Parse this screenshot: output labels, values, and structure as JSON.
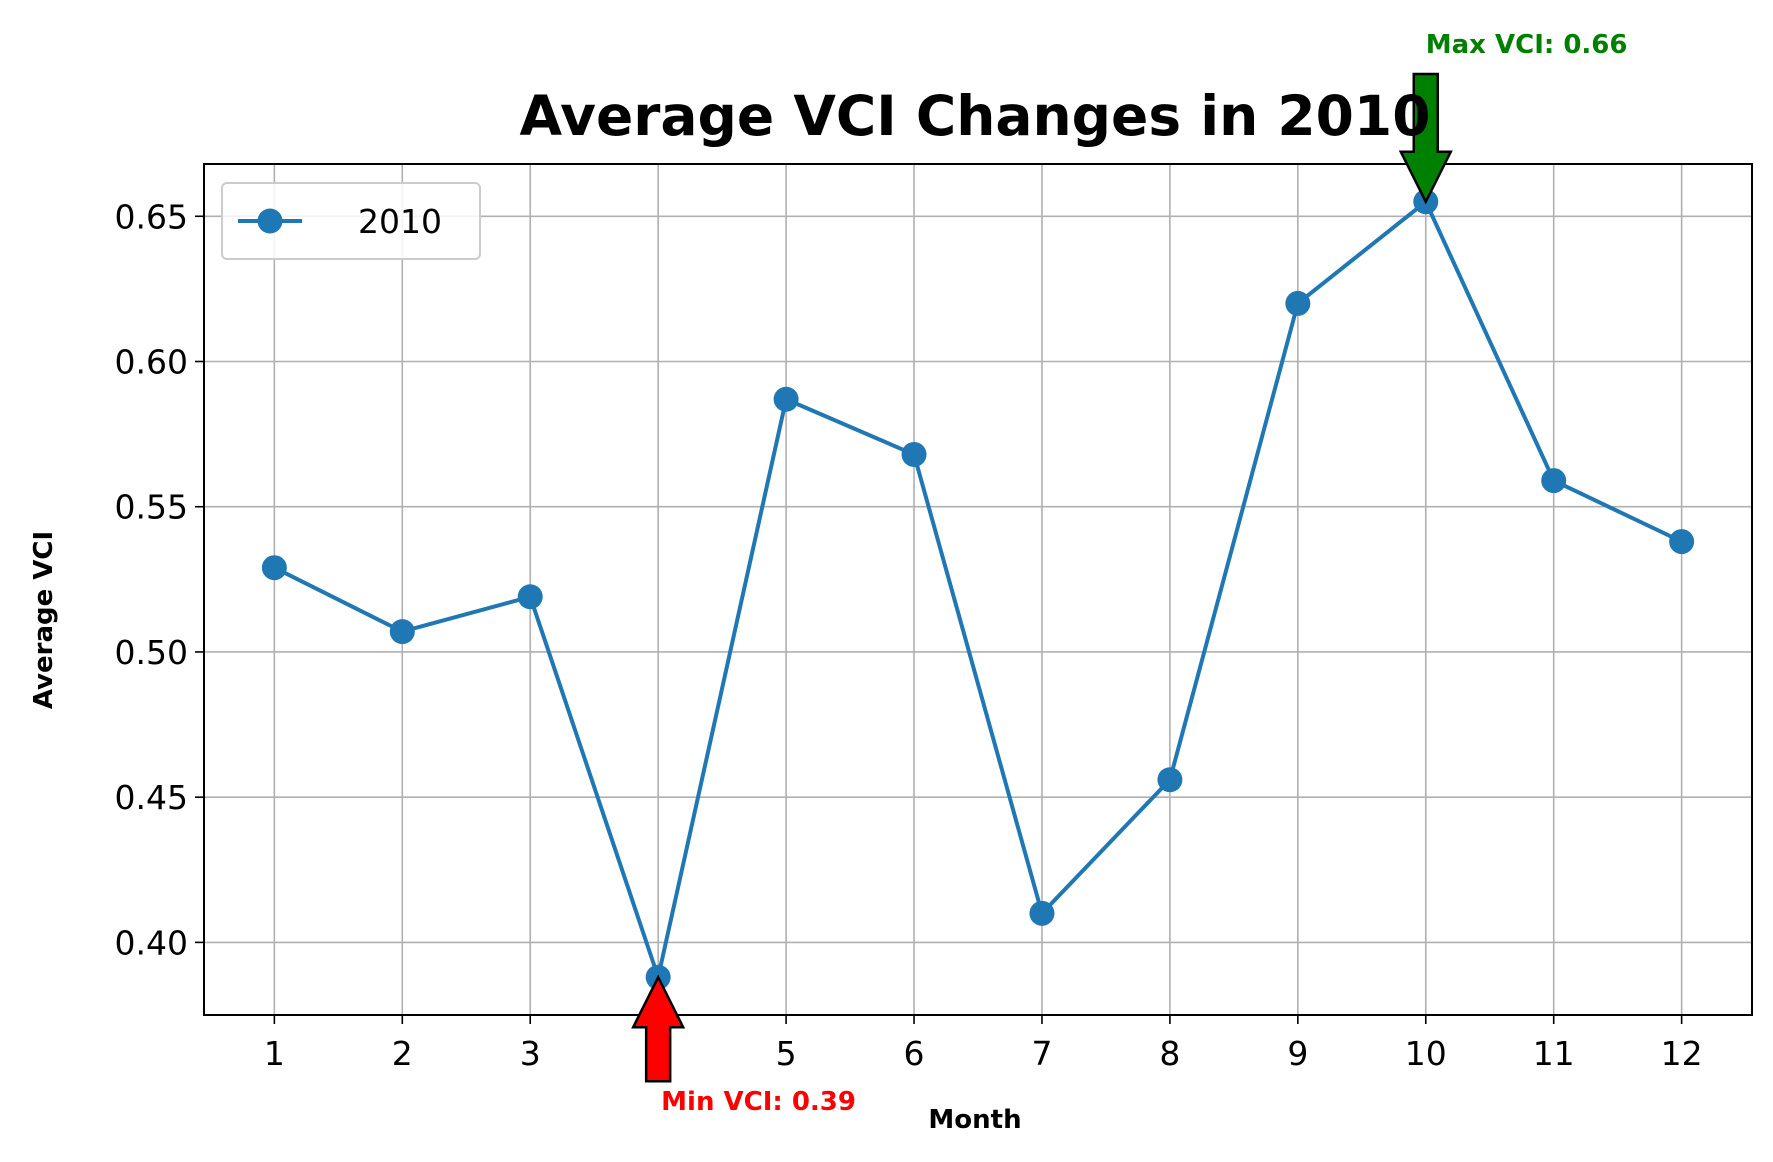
{
  "chart_data": {
    "type": "line",
    "title": "Average VCI Changes in 2010",
    "xlabel": "Month",
    "ylabel": "Average VCI",
    "x": [
      1,
      2,
      3,
      4,
      5,
      6,
      7,
      8,
      9,
      10,
      11,
      12
    ],
    "x_tick_labels": [
      "1",
      "2",
      "3",
      "4",
      "5",
      "6",
      "7",
      "8",
      "9",
      "10",
      "11",
      "12"
    ],
    "y_ticks": [
      0.4,
      0.45,
      0.5,
      0.55,
      0.6,
      0.65
    ],
    "y_tick_labels": [
      "0.40",
      "0.45",
      "0.50",
      "0.55",
      "0.60",
      "0.65"
    ],
    "xlim": [
      0.45,
      12.55
    ],
    "ylim": [
      0.375,
      0.668
    ],
    "grid": true,
    "legend_position": "top-left",
    "series": [
      {
        "name": "2010",
        "color": "#1f77b4",
        "values": [
          0.529,
          0.507,
          0.519,
          0.388,
          0.587,
          0.568,
          0.41,
          0.456,
          0.62,
          0.655,
          0.559,
          0.538
        ]
      }
    ],
    "annotations": [
      {
        "text": "Max VCI: 0.66",
        "x": 10,
        "y": 0.655,
        "color": "#008000",
        "kind": "max"
      },
      {
        "text": "Min VCI: 0.39",
        "x": 4,
        "y": 0.388,
        "color": "#ff0000",
        "kind": "min"
      }
    ]
  }
}
